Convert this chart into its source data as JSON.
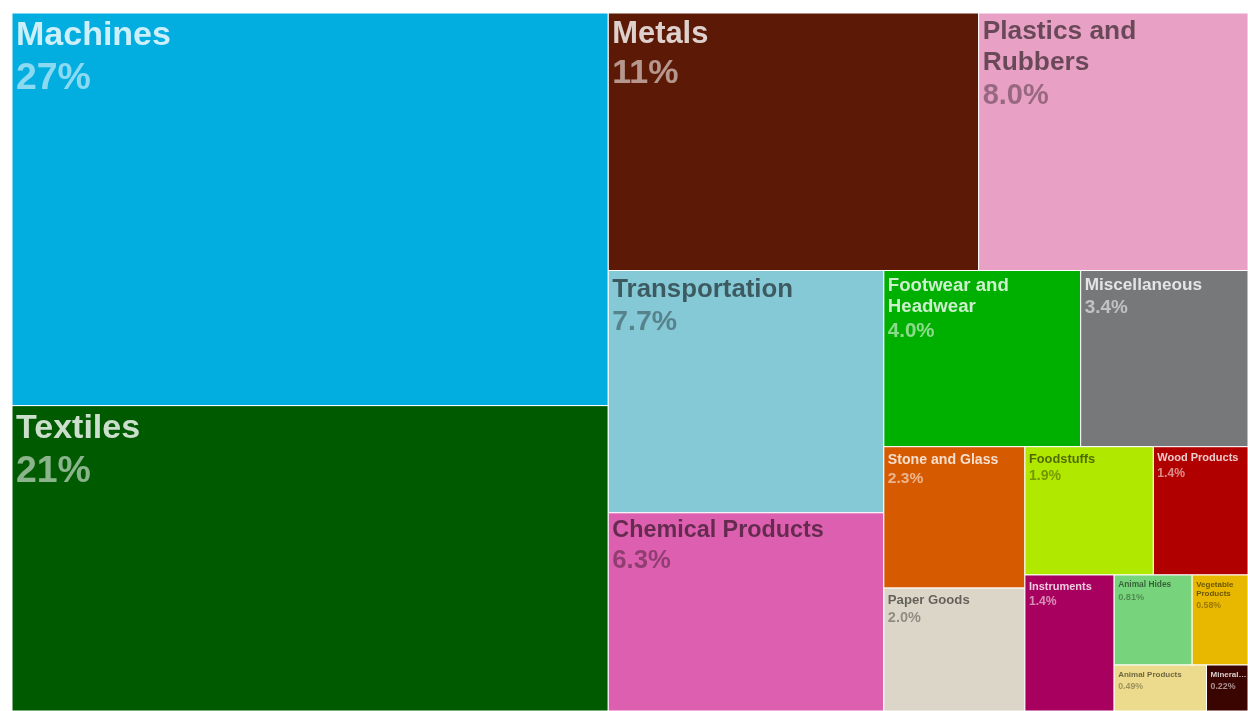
{
  "chart_data": {
    "type": "other",
    "categories": [
      "Machines",
      "Textiles",
      "Metals",
      "Plastics and Rubbers",
      "Transportation",
      "Chemical Products",
      "Footwear and Headwear",
      "Miscellaneous",
      "Stone and Glass",
      "Paper Goods",
      "Foodstuffs",
      "Wood Products",
      "Instruments",
      "Animal Hides",
      "Vegetable Products",
      "Animal Products",
      "Mineral…"
    ],
    "values": [
      27,
      21,
      11,
      8.0,
      7.7,
      6.3,
      4.0,
      3.4,
      2.3,
      2.0,
      1.9,
      1.4,
      1.4,
      0.81,
      0.58,
      0.49,
      0.22
    ],
    "value_labels": [
      "27%",
      "21%",
      "11%",
      "8.0%",
      "7.7%",
      "6.3%",
      "4.0%",
      "3.4%",
      "2.3%",
      "2.0%",
      "1.9%",
      "1.4%",
      "1.4%",
      "0.81%",
      "0.58%",
      "0.49%",
      "0.22%"
    ],
    "colors": [
      "#02aee0",
      "#005a00",
      "#5c1a06",
      "#e8a0c4",
      "#85c8d6",
      "#dd5fb0",
      "#00b000",
      "#77787a",
      "#d65a00",
      "#dcd6c8",
      "#b0e800",
      "#b00000",
      "#a8005e",
      "#78d47c",
      "#e8b800",
      "#ecdb8c",
      "#3a0400"
    ]
  }
}
